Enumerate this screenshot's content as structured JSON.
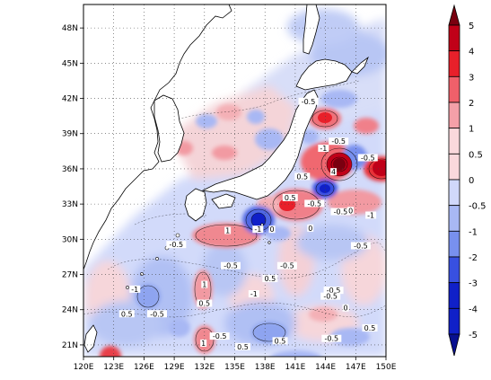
{
  "chart_data": {
    "type": "heatmap",
    "title": "",
    "xlabel": "",
    "ylabel": "",
    "xlim": [
      120,
      150
    ],
    "ylim": [
      20,
      50
    ],
    "x_ticks": [
      "120E",
      "123E",
      "126E",
      "129E",
      "132E",
      "135E",
      "138E",
      "141E",
      "144E",
      "147E",
      "150E"
    ],
    "y_ticks": [
      "21N",
      "24N",
      "27N",
      "30N",
      "33N",
      "36N",
      "39N",
      "42N",
      "45N",
      "48N"
    ],
    "grid": true,
    "colorbar": {
      "placement": "right",
      "levels": [
        "5",
        "4",
        "3",
        "2",
        "1",
        "0.5",
        "0",
        "-0.5",
        "-1",
        "-2",
        "-3",
        "-4",
        "-5"
      ],
      "colors": [
        "#7a0010",
        "#c00018",
        "#e8202a",
        "#f0606a",
        "#f4a0a8",
        "#fad8dc",
        "#ffffff",
        "#d0d8fa",
        "#a8b8f4",
        "#7890ee",
        "#3850e0",
        "#1020c8",
        "#081090"
      ]
    },
    "contour_labels": [
      {
        "lon": 142.3,
        "lat": 41.6,
        "text": "-0.5"
      },
      {
        "lon": 143.8,
        "lat": 37.6,
        "text": "-1"
      },
      {
        "lon": 144.8,
        "lat": 35.6,
        "text": "4"
      },
      {
        "lon": 145.3,
        "lat": 38.2,
        "text": "-0.5"
      },
      {
        "lon": 148.2,
        "lat": 36.8,
        "text": "-0.5"
      },
      {
        "lon": 140.5,
        "lat": 33.4,
        "text": "0.5"
      },
      {
        "lon": 141.7,
        "lat": 35.2,
        "text": "0.5"
      },
      {
        "lon": 142.9,
        "lat": 32.9,
        "text": "-0.5"
      },
      {
        "lon": 145.5,
        "lat": 32.2,
        "text": "-0.5"
      },
      {
        "lon": 148.5,
        "lat": 31.9,
        "text": "-1"
      },
      {
        "lon": 134.3,
        "lat": 30.6,
        "text": "1"
      },
      {
        "lon": 137.3,
        "lat": 30.7,
        "text": "-1"
      },
      {
        "lon": 138.7,
        "lat": 30.7,
        "text": "0"
      },
      {
        "lon": 142.5,
        "lat": 30.8,
        "text": "0"
      },
      {
        "lon": 146.5,
        "lat": 32.3,
        "text": "0"
      },
      {
        "lon": 129.2,
        "lat": 29.4,
        "text": "-0.5"
      },
      {
        "lon": 134.6,
        "lat": 27.6,
        "text": "-0.5"
      },
      {
        "lon": 138.5,
        "lat": 26.5,
        "text": "0.5"
      },
      {
        "lon": 140.2,
        "lat": 27.6,
        "text": "-0.5"
      },
      {
        "lon": 147.5,
        "lat": 29.3,
        "text": "-0.5"
      },
      {
        "lon": 125.1,
        "lat": 25.6,
        "text": "-1"
      },
      {
        "lon": 132.0,
        "lat": 26.0,
        "text": "1"
      },
      {
        "lon": 136.9,
        "lat": 25.2,
        "text": "-1"
      },
      {
        "lon": 144.8,
        "lat": 25.5,
        "text": "-0.5"
      },
      {
        "lon": 144.5,
        "lat": 25.0,
        "text": "-0.5"
      },
      {
        "lon": 132.0,
        "lat": 24.4,
        "text": "0.5"
      },
      {
        "lon": 124.3,
        "lat": 23.5,
        "text": "0.5"
      },
      {
        "lon": 127.3,
        "lat": 23.5,
        "text": "-0.5"
      },
      {
        "lon": 146.0,
        "lat": 24.0,
        "text": "0"
      },
      {
        "lon": 148.4,
        "lat": 22.3,
        "text": "0.5"
      },
      {
        "lon": 133.5,
        "lat": 21.6,
        "text": "-0.5"
      },
      {
        "lon": 139.5,
        "lat": 21.2,
        "text": "0.5"
      },
      {
        "lon": 144.6,
        "lat": 21.4,
        "text": "-0.5"
      },
      {
        "lon": 131.9,
        "lat": 21.0,
        "text": "1"
      },
      {
        "lon": 135.8,
        "lat": 20.7,
        "text": "0.5"
      }
    ]
  }
}
